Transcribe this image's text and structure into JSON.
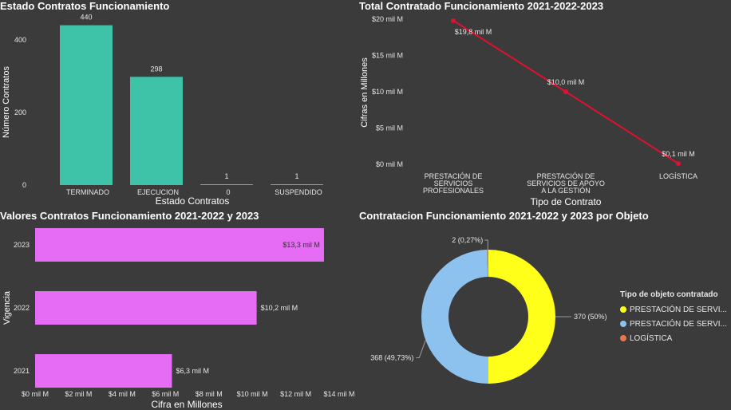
{
  "colors": {
    "teal": "#3ec3a8",
    "red": "#e0102f",
    "magenta": "#e66cf5",
    "yellow": "#ffff1a",
    "lightblue": "#8ec2ee",
    "orange": "#e8764a",
    "background": "#3b3b3b"
  },
  "chart_data": [
    {
      "type": "bar",
      "title": "Estado Contratos Funcionamiento",
      "xlabel": "Estado Contratos",
      "ylabel": "Número Contratos",
      "categories": [
        "TERMINADO",
        "EJECUCION",
        "0",
        "SUSPENDIDO"
      ],
      "values": [
        440,
        298,
        1,
        1
      ],
      "data_labels": [
        "440",
        "298",
        "1",
        "1"
      ],
      "yticks": [
        "0",
        "200",
        "400"
      ],
      "ylim": [
        0,
        470
      ]
    },
    {
      "type": "line",
      "title": "Total Contratado Funcionamiento 2021-2022-2023",
      "xlabel": "Tipo de Contrato",
      "ylabel": "Cifras en Millones",
      "categories": [
        "PRESTACIÓN DE SERVICIOS PROFESIONALES",
        "PRESTACIÓN DE SERVICIOS DE APOYO A LA GESTIÓN",
        "LOGÍSTICA"
      ],
      "category_lines": [
        [
          "PRESTACIÓN DE",
          "SERVICIOS",
          "PROFESIONALES"
        ],
        [
          "PRESTACIÓN DE",
          "SERVICIOS DE APOYO",
          "A LA GESTIÓN"
        ],
        [
          "LOGÍSTICA"
        ]
      ],
      "values": [
        19.8,
        10.0,
        0.1
      ],
      "data_labels": [
        "$19,8 mil M",
        "$10,0 mil M",
        "$0,1 mil M"
      ],
      "yticks": [
        "$0 mil M",
        "$5 mil M",
        "$10 mil M",
        "$15 mil M",
        "$20 mil M"
      ],
      "ylim": [
        0,
        20
      ]
    },
    {
      "type": "bar",
      "orientation": "horizontal",
      "title": "Valores Contratos Funcionamiento 2021-2022 y 2023",
      "xlabel": "Cifra en Millones",
      "ylabel": "Vigencia",
      "categories": [
        "2023",
        "2022",
        "2021"
      ],
      "values": [
        13.3,
        10.2,
        6.3
      ],
      "data_labels": [
        "$13,3 mil M",
        "$10,2 mil M",
        "$6,3 mil M"
      ],
      "xticks": [
        "$0 mil M",
        "$2 mil M",
        "$4 mil M",
        "$6 mil M",
        "$8 mil M",
        "$10 mil M",
        "$12 mil M",
        "$14 mil M"
      ],
      "xlim": [
        0,
        14
      ]
    },
    {
      "type": "pie",
      "donut": true,
      "title": "Contratacion Funcionamiento 2021-2022 y 2023 por Objeto",
      "legend_title": "Tipo de objeto contratado",
      "legend_position": "right",
      "categories": [
        "PRESTACIÓN DE SERVI...",
        "PRESTACIÓN DE SERVI...",
        "LOGÍSTICA"
      ],
      "values": [
        370,
        368,
        2
      ],
      "data_labels": [
        "370 (50%)",
        "368 (49,73%)",
        "2 (0,27%)"
      ]
    }
  ]
}
